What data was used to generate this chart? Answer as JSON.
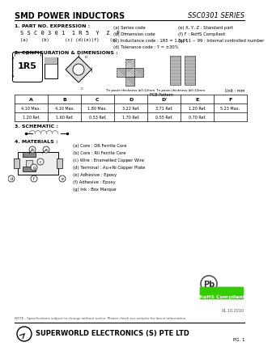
{
  "title": "SMD POWER INDUCTORS",
  "series": "SSC0301 SERIES",
  "bg_color": "#ffffff",
  "section1_title": "1. PART NO. EXPRESSION :",
  "part_number": "S S C 0 3 0 1  1 R 5  Y  Z  F -",
  "part_labels_text": "(a)     (b)      (c) (d)(e)(f)    (g)",
  "notes_col1": [
    "(a) Series code",
    "(b) Dimension code",
    "(c) Inductance code : 1R5 = 1.5uH",
    "(d) Tolerance code : Y = ±30%"
  ],
  "notes_col2": [
    "(e) X, Y, Z : Standard part",
    "(f) F : RoHS Compliant",
    "(g) 11 ~ 99 : Internal controlled number"
  ],
  "section2_title": "2. CONFIGURATION & DIMENSIONS :",
  "tin_paste1": "Tin paste thickness ≥0.12mm",
  "tin_paste2": "Tin paste thickness ≥0.12mm",
  "pcb_pattern": "PCB Pattern",
  "unit_note": "Unit : mm",
  "table_headers": [
    "A",
    "B",
    "C",
    "D",
    "D'",
    "E",
    "F"
  ],
  "table_row1": [
    "4.10 Max.",
    "4.10 Max.",
    "1.80 Max.",
    "3.22 Ref.",
    "3.71 Ref.",
    "1.20 Ref.",
    "5.23 Max."
  ],
  "table_row2": [
    "1.20 Ref.",
    "1.60 Ref.",
    "0.53 Ref.",
    "1.70 Ref.",
    "0.55 Ref.",
    "0.70 Ref.",
    ""
  ],
  "section3_title": "3. SCHEMATIC :",
  "section4_title": "4. MATERIALS :",
  "materials": [
    "(a) Core : DR Ferrite Core",
    "(b) Core : Rli Ferrite Core",
    "(c) Wire : Enamelled Copper Wire",
    "(d) Terminal : Au+Ni Copper Plate",
    "(e) Adhesive : Epoxy",
    "(f) Adhesive : Epoxy",
    "(g) Ink : Box Marque"
  ],
  "note_text": "NOTE : Specifications subject to change without notice. Please check our website for latest information.",
  "date_text": "01.10.2010",
  "company": "SUPERWORLD ELECTRONICS (S) PTE LTD",
  "page": "PG. 1",
  "rohs_color": "#33cc00",
  "rohs_text": "RoHS Compliant",
  "pb_text": "Pb"
}
